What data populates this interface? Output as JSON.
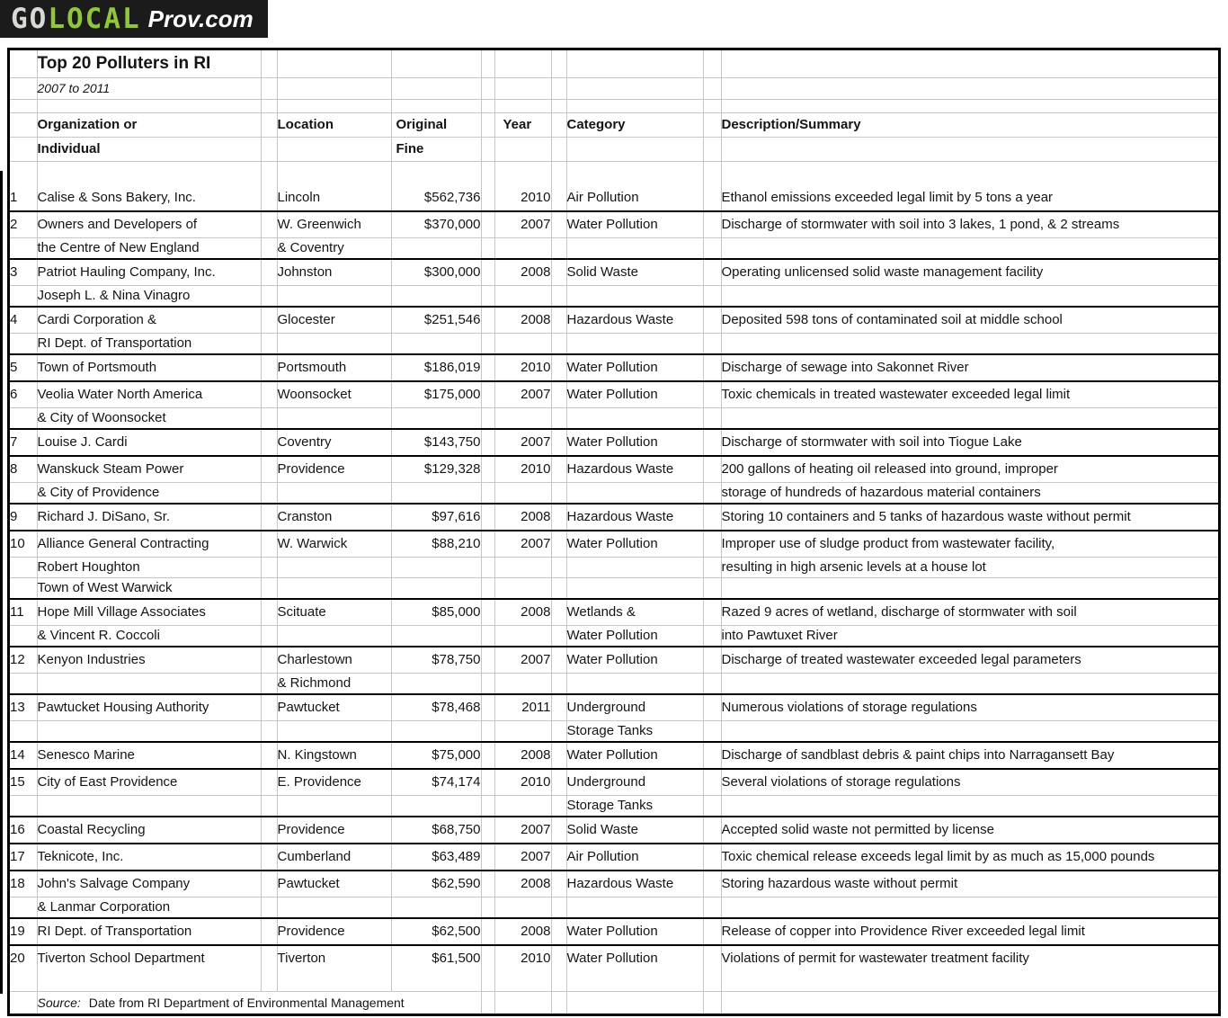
{
  "logo": {
    "go": "GO",
    "local": "LOCAL",
    "prov": "Prov.com",
    "bg_color": "#1b1b1b",
    "go_color": "#d9d9d6",
    "local_color": "#90c53e",
    "prov_color": "#ffffff"
  },
  "chart_data": {
    "type": "table",
    "title": "Top 20 Polluters in RI",
    "subtitle": "2007 to 2011",
    "columns": [
      "#",
      "Organization or Individual",
      "Location",
      "Original Fine",
      "Year",
      "Category",
      "Description/Summary"
    ],
    "headers": {
      "org_line1": "Organization or",
      "org_line2": "Individual",
      "location": "Location",
      "fine_line1": "Original",
      "fine_line2": "Fine",
      "year": "Year",
      "category": "Category",
      "description": "Description/Summary"
    },
    "source_label": "Source:",
    "source_text": "Date from RI Department of Environmental Management",
    "rows": [
      {
        "num": "1",
        "org": [
          "Calise & Sons Bakery, Inc."
        ],
        "loc": [
          "Lincoln"
        ],
        "fine": "$562,736",
        "year": "2010",
        "cat": [
          "Air Pollution"
        ],
        "desc": [
          "Ethanol emissions exceeded legal limit by 5 tons a year"
        ]
      },
      {
        "num": "2",
        "org": [
          "Owners and Developers of",
          "the Centre of New England"
        ],
        "loc": [
          "W. Greenwich",
          "& Coventry"
        ],
        "fine": "$370,000",
        "year": "2007",
        "cat": [
          "Water Pollution"
        ],
        "desc": [
          "Discharge of stormwater with soil into 3 lakes, 1 pond, & 2 streams"
        ]
      },
      {
        "num": "3",
        "org": [
          "Patriot Hauling Company, Inc.",
          "Joseph L. & Nina Vinagro"
        ],
        "loc": [
          "Johnston"
        ],
        "fine": "$300,000",
        "year": "2008",
        "cat": [
          "Solid Waste"
        ],
        "desc": [
          "Operating unlicensed solid waste management facility"
        ]
      },
      {
        "num": "4",
        "org": [
          "Cardi Corporation &",
          "RI Dept. of Transportation"
        ],
        "loc": [
          "Glocester"
        ],
        "fine": "$251,546",
        "year": "2008",
        "cat": [
          "Hazardous Waste"
        ],
        "desc": [
          "Deposited 598 tons of contaminated soil at middle school"
        ]
      },
      {
        "num": "5",
        "org": [
          "Town of Portsmouth"
        ],
        "loc": [
          "Portsmouth"
        ],
        "fine": "$186,019",
        "year": "2010",
        "cat": [
          "Water Pollution"
        ],
        "desc": [
          "Discharge of sewage into Sakonnet River"
        ]
      },
      {
        "num": "6",
        "org": [
          "Veolia Water North America",
          "& City of Woonsocket"
        ],
        "loc": [
          "Woonsocket"
        ],
        "fine": "$175,000",
        "year": "2007",
        "cat": [
          "Water Pollution"
        ],
        "desc": [
          "Toxic chemicals in treated wastewater exceeded legal limit"
        ]
      },
      {
        "num": "7",
        "org": [
          "Louise J. Cardi"
        ],
        "loc": [
          "Coventry"
        ],
        "fine": "$143,750",
        "year": "2007",
        "cat": [
          "Water Pollution"
        ],
        "desc": [
          "Discharge of stormwater with soil into Tiogue Lake"
        ]
      },
      {
        "num": "8",
        "org": [
          "Wanskuck Steam Power",
          "& City of Providence"
        ],
        "loc": [
          "Providence"
        ],
        "fine": "$129,328",
        "year": "2010",
        "cat": [
          "Hazardous Waste"
        ],
        "desc": [
          "200 gallons of heating oil released into ground, improper",
          "storage of hundreds of hazardous material containers"
        ]
      },
      {
        "num": "9",
        "org": [
          "Richard J. DiSano, Sr."
        ],
        "loc": [
          "Cranston"
        ],
        "fine": "$97,616",
        "year": "2008",
        "cat": [
          "Hazardous Waste"
        ],
        "desc": [
          "Storing 10 containers and 5 tanks of hazardous waste without permit"
        ]
      },
      {
        "num": "10",
        "org": [
          "Alliance General Contracting",
          "Robert Houghton",
          "Town of West Warwick"
        ],
        "loc": [
          "W. Warwick"
        ],
        "fine": "$88,210",
        "year": "2007",
        "cat": [
          "Water Pollution"
        ],
        "desc": [
          "Improper use of sludge product from wastewater facility,",
          "resulting in high arsenic levels at a house lot"
        ]
      },
      {
        "num": "11",
        "org": [
          "Hope Mill Village Associates",
          "& Vincent R. Coccoli"
        ],
        "loc": [
          "Scituate"
        ],
        "fine": "$85,000",
        "year": "2008",
        "cat": [
          "Wetlands &",
          "Water Pollution"
        ],
        "desc": [
          "Razed 9 acres of wetland, discharge of stormwater with soil",
          "into Pawtuxet River"
        ]
      },
      {
        "num": "12",
        "org": [
          "Kenyon Industries"
        ],
        "loc": [
          "Charlestown",
          "& Richmond"
        ],
        "fine": "$78,750",
        "year": "2007",
        "cat": [
          "Water Pollution"
        ],
        "desc": [
          "Discharge of treated wastewater exceeded legal parameters"
        ]
      },
      {
        "num": "13",
        "org": [
          "Pawtucket Housing Authority"
        ],
        "loc": [
          "Pawtucket"
        ],
        "fine": "$78,468",
        "year": "2011",
        "cat": [
          "Underground",
          "Storage Tanks"
        ],
        "desc": [
          "Numerous violations of storage regulations"
        ]
      },
      {
        "num": "14",
        "org": [
          "Senesco Marine"
        ],
        "loc": [
          "N. Kingstown"
        ],
        "fine": "$75,000",
        "year": "2008",
        "cat": [
          "Water Pollution"
        ],
        "desc": [
          "Discharge of sandblast debris & paint chips into Narragansett Bay"
        ]
      },
      {
        "num": "15",
        "org": [
          "City of East Providence"
        ],
        "loc": [
          "E. Providence"
        ],
        "fine": "$74,174",
        "year": "2010",
        "cat": [
          "Underground",
          "Storage Tanks"
        ],
        "desc": [
          "Several violations of storage regulations"
        ]
      },
      {
        "num": "16",
        "org": [
          "Coastal Recycling"
        ],
        "loc": [
          "Providence"
        ],
        "fine": "$68,750",
        "year": "2007",
        "cat": [
          "Solid Waste"
        ],
        "desc": [
          "Accepted solid waste not permitted by license"
        ]
      },
      {
        "num": "17",
        "org": [
          "Teknicote, Inc."
        ],
        "loc": [
          "Cumberland"
        ],
        "fine": "$63,489",
        "year": "2007",
        "cat": [
          "Air Pollution"
        ],
        "desc": [
          "Toxic chemical release exceeds legal limit by as much as 15,000 pounds"
        ]
      },
      {
        "num": "18",
        "org": [
          "John's Salvage Company",
          "& Lanmar Corporation"
        ],
        "loc": [
          "Pawtucket"
        ],
        "fine": "$62,590",
        "year": "2008",
        "cat": [
          "Hazardous Waste"
        ],
        "desc": [
          "Storing hazardous waste without permit"
        ]
      },
      {
        "num": "19",
        "org": [
          "RI Dept. of Transportation"
        ],
        "loc": [
          "Providence"
        ],
        "fine": "$62,500",
        "year": "2008",
        "cat": [
          "Water Pollution"
        ],
        "desc": [
          "Release of copper into Providence River exceeded legal limit"
        ]
      },
      {
        "num": "20",
        "org": [
          "Tiverton School Department"
        ],
        "loc": [
          "Tiverton"
        ],
        "fine": "$61,500",
        "year": "2010",
        "cat": [
          "Water Pollution"
        ],
        "desc": [
          "Violations of permit for wastewater treatment facility"
        ]
      }
    ]
  }
}
